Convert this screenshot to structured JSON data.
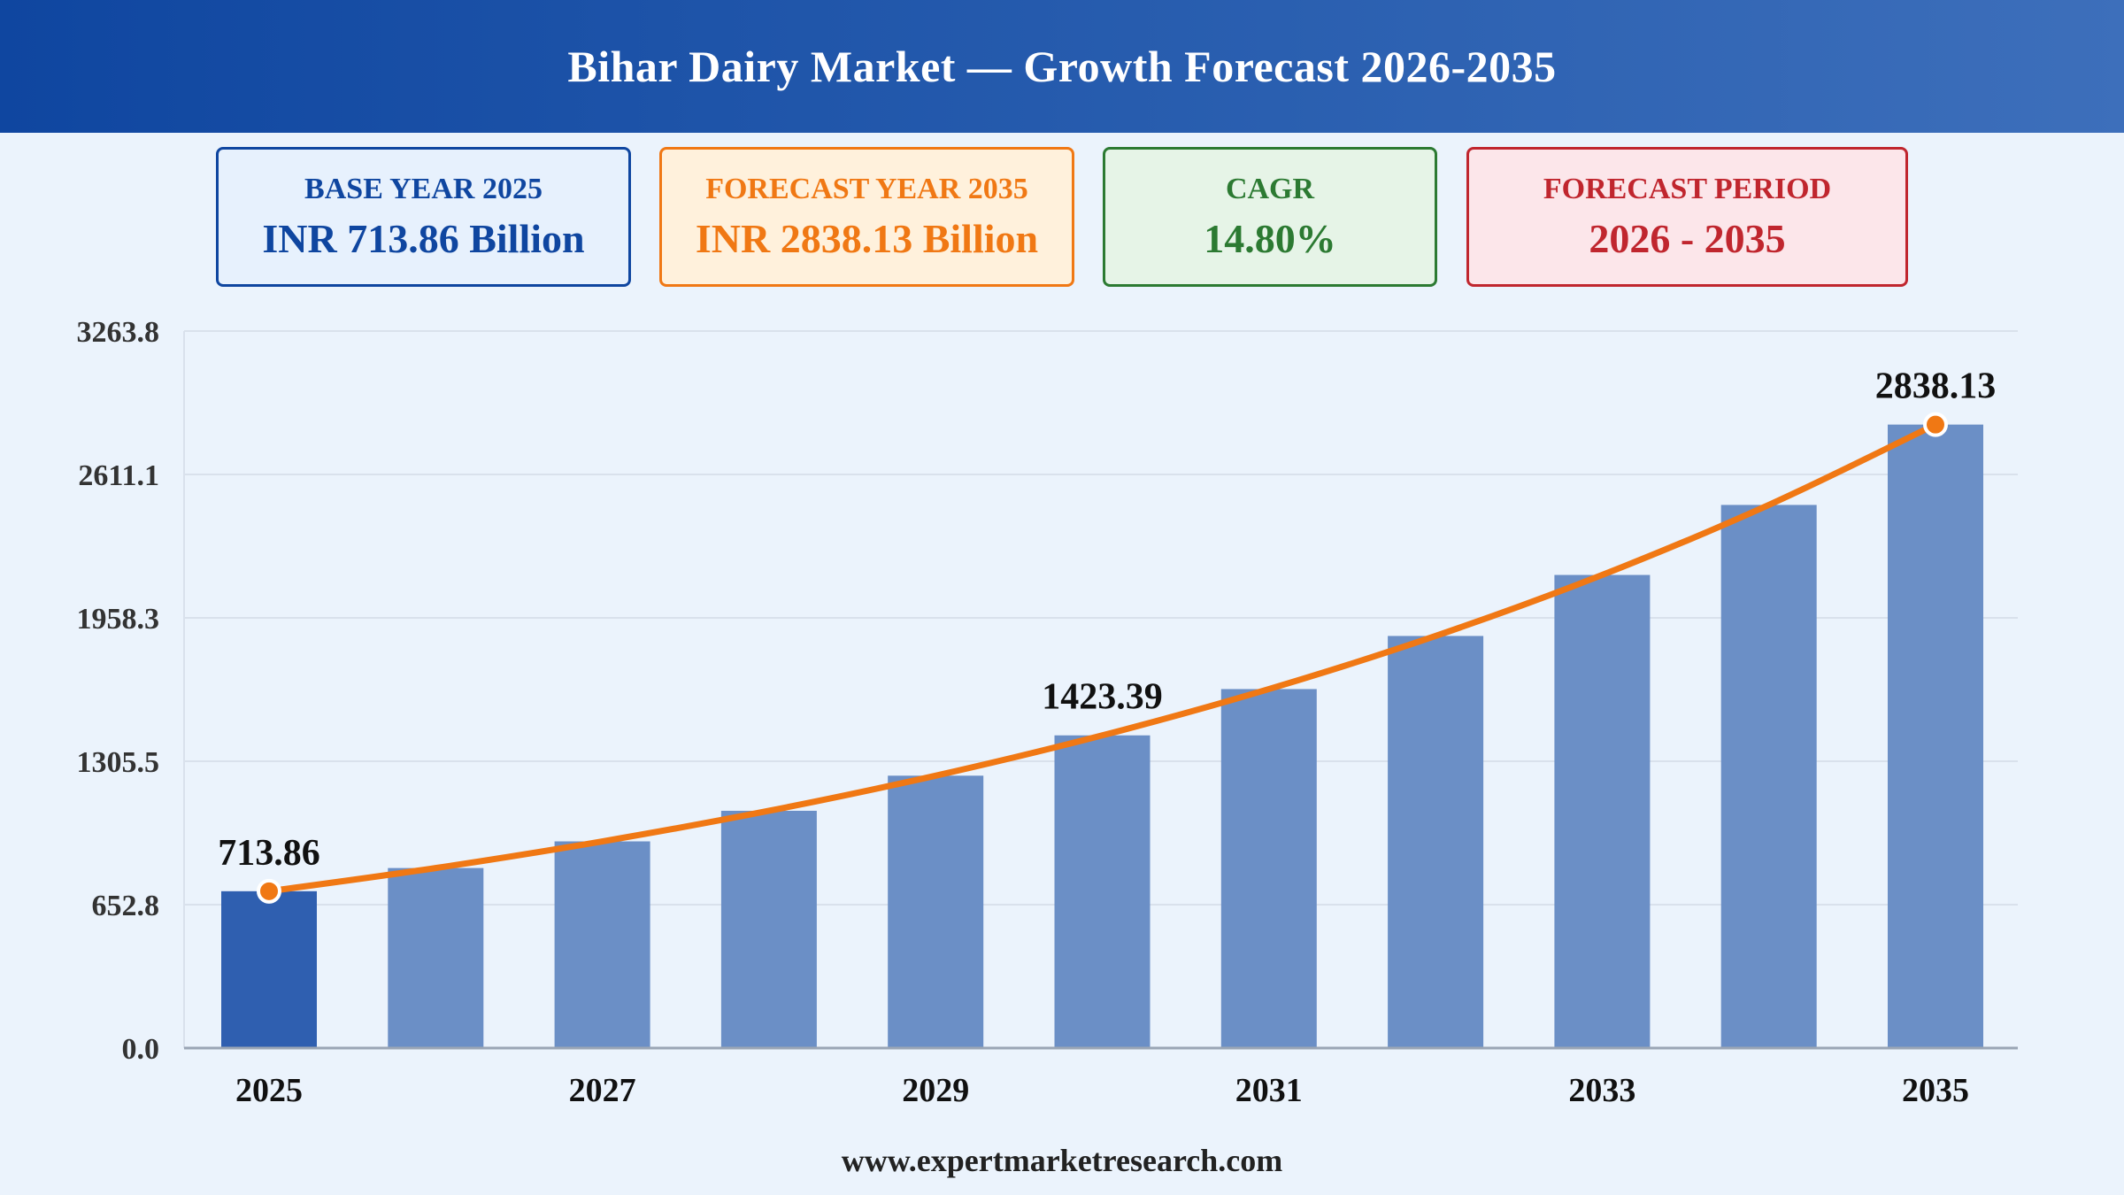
{
  "header": {
    "title": "Bihar Dairy Market — Growth Forecast 2026-2035"
  },
  "cards": {
    "base": {
      "label": "BASE YEAR 2025",
      "value": "INR 713.86 Billion"
    },
    "forecast": {
      "label": "FORECAST YEAR 2035",
      "value": "INR 2838.13 Billion"
    },
    "cagr": {
      "label": "CAGR",
      "value": "14.80%"
    },
    "period": {
      "label": "FORECAST PERIOD",
      "value": "2026 - 2035"
    }
  },
  "footer": {
    "text": "www.expertmarketresearch.com"
  },
  "colors": {
    "bar_highlight": "#2f5fb0",
    "bar": "#6b8fc6",
    "line": "#f07814",
    "grid": "#d9e1ec",
    "axis": "#9aa5b5"
  },
  "chart_data": {
    "type": "bar",
    "categories": [
      "2025",
      "2026",
      "2027",
      "2028",
      "2029",
      "2030",
      "2031",
      "2032",
      "2033",
      "2034",
      "2035"
    ],
    "x_tick_labels": [
      "2025",
      "2027",
      "2029",
      "2031",
      "2033",
      "2035"
    ],
    "values": [
      713.86,
      819.5,
      940.8,
      1080.0,
      1239.9,
      1423.39,
      1634.1,
      1875.9,
      2153.6,
      2472.3,
      2838.13
    ],
    "y_ticks": [
      "0.0",
      "652.8",
      "1305.5",
      "1958.3",
      "2611.1",
      "3263.8"
    ],
    "ylim": [
      0,
      3263.8
    ],
    "data_labels": [
      {
        "index": 0,
        "text": "713.86"
      },
      {
        "index": 5,
        "text": "1423.39"
      },
      {
        "index": 10,
        "text": "2838.13"
      }
    ],
    "trend_line": true,
    "markers_on": [
      0,
      10
    ],
    "grid": true,
    "legend": "none",
    "title": "",
    "xlabel": "",
    "ylabel": ""
  }
}
